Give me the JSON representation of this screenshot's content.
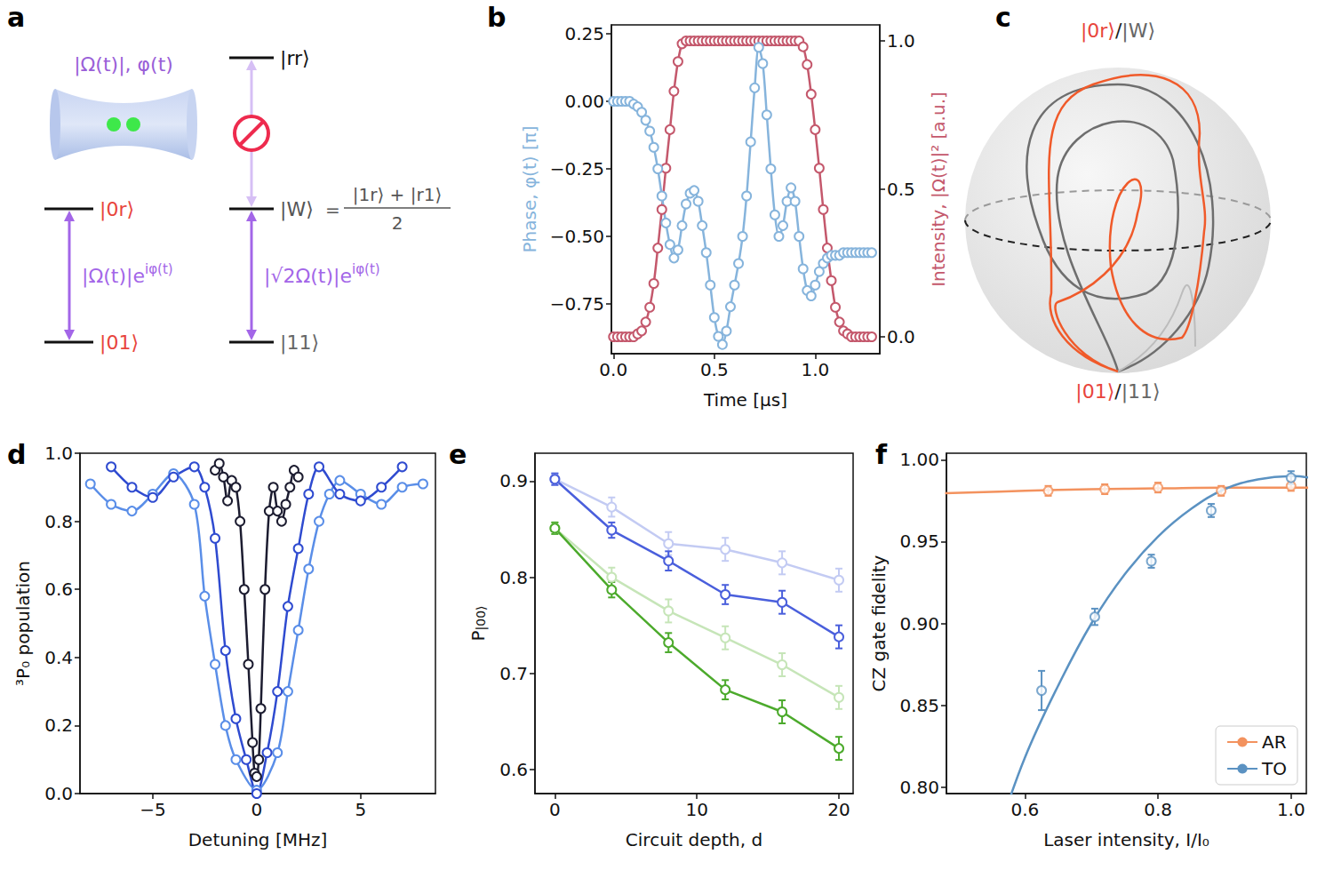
{
  "diagram_a": {
    "panel": "a",
    "beam_label": "|Ω(t)|, φ(t)",
    "left": {
      "upper": "|0r⟩",
      "lower": "|01⟩",
      "coupling": {
        "base": "|Ω(t)|e",
        "sup": "iφ(t)"
      }
    },
    "right": {
      "top": "|rr⟩",
      "middle": "|W⟩",
      "middle_definition": {
        "lhs": "=",
        "numerator": "|1r⟩ + |r1⟩",
        "denominator": "2"
      },
      "lower": "|11⟩",
      "coupling": {
        "base": "|√2Ω(t)|e",
        "sup": "iφ(t)"
      }
    }
  },
  "diagram_c": {
    "panel": "c",
    "top_label": [
      {
        "text": "|0r⟩",
        "color": "#e8453c"
      },
      {
        "text": "/",
        "color": "#222222"
      },
      {
        "text": "|W⟩",
        "color": "#666666"
      }
    ],
    "bottom_label": [
      {
        "text": "|01⟩",
        "color": "#e8453c"
      },
      {
        "text": "/",
        "color": "#222222"
      },
      {
        "text": "|11⟩",
        "color": "#666666"
      }
    ]
  },
  "chart_data": [
    {
      "panel": "b",
      "type": "line",
      "marker": "circle",
      "grid": false,
      "x_label": "Time [μs]",
      "y_label": "Phase, φ(t) [π]",
      "y2_label": "Intensity, |Ω(t)|² [a.u.]",
      "xlim": [
        -0.01,
        1.32
      ],
      "xticks": [
        {
          "value": 0,
          "label": "0.0"
        },
        {
          "value": 0.5,
          "label": "0.5"
        },
        {
          "value": 1,
          "label": "1.0"
        }
      ],
      "ylim": [
        -0.934,
        0.283
      ],
      "yticks": [
        {
          "value": -0.75,
          "label": "−0.75"
        },
        {
          "value": -0.5,
          "label": "−0.50"
        },
        {
          "value": -0.25,
          "label": "−0.25"
        },
        {
          "value": 0,
          "label": "0.00"
        },
        {
          "value": 0.25,
          "label": "0.25"
        }
      ],
      "y2lim": [
        -0.057,
        1.054
      ],
      "y2ticks": [
        {
          "value": 0,
          "label": "0.0"
        },
        {
          "value": 0.5,
          "label": "0.5"
        },
        {
          "value": 1,
          "label": "1.0"
        }
      ],
      "x": [
        0,
        0.02,
        0.04,
        0.06,
        0.08,
        0.1,
        0.12,
        0.14,
        0.16,
        0.18,
        0.2,
        0.22,
        0.24,
        0.26,
        0.28,
        0.3,
        0.32,
        0.34,
        0.36,
        0.38,
        0.4,
        0.42,
        0.44,
        0.46,
        0.48,
        0.5,
        0.52,
        0.54,
        0.56,
        0.58,
        0.6,
        0.62,
        0.64,
        0.66,
        0.68,
        0.7,
        0.72,
        0.74,
        0.76,
        0.78,
        0.8,
        0.82,
        0.84,
        0.86,
        0.88,
        0.9,
        0.92,
        0.94,
        0.96,
        0.98,
        1.0,
        1.02,
        1.04,
        1.06,
        1.08,
        1.1,
        1.12,
        1.14,
        1.16,
        1.18,
        1.2,
        1.22,
        1.24,
        1.26,
        1.28
      ],
      "series": [
        {
          "color": "#c4586c",
          "axis": "y2",
          "values": [
            0,
            0,
            0,
            0,
            0,
            0,
            0.01,
            0.02,
            0.05,
            0.1,
            0.18,
            0.3,
            0.43,
            0.57,
            0.7,
            0.83,
            0.93,
            0.99,
            1,
            1,
            1,
            1,
            1,
            1,
            1,
            1,
            1,
            1,
            1,
            1,
            1,
            1,
            1,
            1,
            1,
            1,
            1,
            1,
            1,
            1,
            1,
            1,
            1,
            1,
            1,
            1,
            1,
            0.98,
            0.92,
            0.82,
            0.7,
            0.57,
            0.43,
            0.3,
            0.19,
            0.1,
            0.05,
            0.02,
            0.01,
            0,
            0,
            0,
            0,
            0,
            0
          ]
        },
        {
          "color": "#86b4dc",
          "axis": "y",
          "values": [
            0,
            0,
            0,
            0,
            0,
            -0.01,
            -0.02,
            -0.04,
            -0.07,
            -0.11,
            -0.17,
            -0.25,
            -0.35,
            -0.45,
            -0.53,
            -0.58,
            -0.55,
            -0.46,
            -0.38,
            -0.34,
            -0.33,
            -0.37,
            -0.46,
            -0.56,
            -0.68,
            -0.8,
            -0.87,
            -0.9,
            -0.85,
            -0.76,
            -0.68,
            -0.6,
            -0.5,
            -0.35,
            -0.15,
            0.05,
            0.2,
            0.14,
            -0.05,
            -0.25,
            -0.42,
            -0.5,
            -0.46,
            -0.37,
            -0.32,
            -0.37,
            -0.5,
            -0.62,
            -0.7,
            -0.72,
            -0.68,
            -0.63,
            -0.6,
            -0.58,
            -0.57,
            -0.57,
            -0.57,
            -0.56,
            -0.56,
            -0.56,
            -0.56,
            -0.56,
            -0.56,
            -0.56,
            -0.56
          ]
        }
      ]
    },
    {
      "panel": "d",
      "type": "line",
      "marker": "circle",
      "grid": false,
      "x_label": "Detuning [MHz]",
      "y_label": "³P₀ population",
      "xlim": [
        -8.5,
        8.6
      ],
      "xticks": [
        {
          "value": -5,
          "label": "−5"
        },
        0,
        5
      ],
      "ylim": [
        0,
        1
      ],
      "yticks": [
        {
          "value": 0,
          "label": "0.0"
        },
        0.2,
        0.4,
        0.6,
        0.8,
        {
          "value": 1,
          "label": "1.0"
        }
      ],
      "series": [
        {
          "color": "#5a8ee8",
          "x": [
            -8,
            -7,
            -6,
            -5,
            -4,
            -3,
            -2.5,
            -2,
            -1.5,
            -1,
            0,
            1,
            1.5,
            2,
            2.5,
            3,
            3.5,
            4,
            5,
            6,
            7,
            8
          ],
          "values": [
            0.91,
            0.85,
            0.83,
            0.88,
            0.94,
            0.85,
            0.58,
            0.38,
            0.2,
            0.1,
            0.01,
            0.12,
            0.3,
            0.48,
            0.66,
            0.8,
            0.88,
            0.92,
            0.88,
            0.85,
            0.9,
            0.91
          ]
        },
        {
          "color": "#2f4bd0",
          "x": [
            -7,
            -6,
            -5,
            -4,
            -3,
            -2.5,
            -2,
            -1.5,
            -1,
            -0.5,
            0,
            0.5,
            1,
            1.5,
            2,
            2.5,
            3,
            4,
            5,
            6,
            7
          ],
          "values": [
            0.96,
            0.9,
            0.87,
            0.93,
            0.96,
            0.9,
            0.75,
            0.42,
            0.22,
            0.1,
            0.0,
            0.12,
            0.3,
            0.55,
            0.72,
            0.88,
            0.96,
            0.88,
            0.86,
            0.9,
            0.96
          ]
        },
        {
          "color": "#1c1c30",
          "x": [
            -2,
            -1.8,
            -1.6,
            -1.4,
            -1.2,
            -1,
            -0.8,
            -0.6,
            -0.4,
            -0.2,
            -0.1,
            0,
            0.1,
            0.2,
            0.4,
            0.6,
            0.8,
            1,
            1.2,
            1.4,
            1.6,
            1.8,
            2
          ],
          "values": [
            0.95,
            0.97,
            0.93,
            0.86,
            0.92,
            0.9,
            0.8,
            0.6,
            0.38,
            0.15,
            0.06,
            0.05,
            0.1,
            0.25,
            0.6,
            0.83,
            0.9,
            0.83,
            0.8,
            0.85,
            0.9,
            0.95,
            0.93
          ]
        }
      ]
    },
    {
      "panel": "e",
      "type": "line",
      "marker": "circle",
      "grid": false,
      "x_label": "Circuit depth, d",
      "y_label": {
        "base": "P",
        "sub": "|00⟩"
      },
      "xlim": [
        -1.4,
        21
      ],
      "xticks": [
        0,
        10,
        20
      ],
      "ylim": [
        0.575,
        0.929
      ],
      "yticks": [
        0.6,
        0.7,
        0.8,
        0.9
      ],
      "x": [
        0,
        4,
        8,
        12,
        16,
        20
      ],
      "series": [
        {
          "color": "#c3cbf3",
          "values": [
            0.902,
            0.873,
            0.835,
            0.829,
            0.815,
            0.797
          ],
          "errors": [
            0.006,
            0.01,
            0.012,
            0.012,
            0.012,
            0.012
          ]
        },
        {
          "color": "#c6e5b8",
          "values": [
            0.851,
            0.8,
            0.765,
            0.737,
            0.709,
            0.675
          ],
          "errors": [
            0.006,
            0.01,
            0.012,
            0.012,
            0.012,
            0.012
          ]
        },
        {
          "color": "#4a5fdc",
          "values": [
            0.902,
            0.849,
            0.817,
            0.782,
            0.774,
            0.738
          ],
          "errors": [
            0.006,
            0.008,
            0.01,
            0.01,
            0.012,
            0.012
          ]
        },
        {
          "color": "#4caa2c",
          "values": [
            0.851,
            0.787,
            0.732,
            0.683,
            0.66,
            0.622
          ],
          "errors": [
            0.006,
            0.008,
            0.01,
            0.01,
            0.012,
            0.012
          ]
        }
      ]
    },
    {
      "panel": "f",
      "type": "scatter",
      "marker": "circle",
      "grid": false,
      "legend": "lower right",
      "x_label": "Laser intensity, I/I₀",
      "y_label": "CZ gate fidelity",
      "xlim": [
        0.482,
        1.023
      ],
      "xticks": [
        0.6,
        0.8,
        {
          "value": 1,
          "label": "1.0"
        }
      ],
      "ylim": [
        0.796,
        1.004
      ],
      "yticks": [
        {
          "value": 0.8,
          "label": "0.80"
        },
        0.85,
        {
          "value": 0.9,
          "label": "0.90"
        },
        0.95,
        {
          "value": 1,
          "label": "1.00"
        }
      ],
      "series": [
        {
          "name": "AR",
          "color": "#f3925e",
          "x": [
            0.635,
            0.72,
            0.8,
            0.895,
            1.0
          ],
          "values": [
            0.981,
            0.982,
            0.983,
            0.981,
            0.984
          ],
          "errors": [
            0.003,
            0.003,
            0.003,
            0.003,
            0.003
          ],
          "fit_x": [
            0.48,
            0.6,
            0.7,
            0.8,
            0.9,
            1.0,
            1.08
          ],
          "fit_values": [
            0.9795,
            0.981,
            0.982,
            0.9825,
            0.983,
            0.983,
            0.9825
          ]
        },
        {
          "name": "TO",
          "color": "#5b92c2",
          "x": [
            0.625,
            0.705,
            0.79,
            0.88,
            1.0
          ],
          "values": [
            0.859,
            0.904,
            0.938,
            0.969,
            0.989
          ],
          "errors": [
            0.012,
            0.005,
            0.004,
            0.004,
            0.004
          ],
          "fit_x": [
            0.56,
            0.6,
            0.65,
            0.7,
            0.75,
            0.8,
            0.85,
            0.9,
            0.95,
            1.0,
            1.05,
            1.08
          ],
          "fit_values": [
            0.772,
            0.818,
            0.862,
            0.9,
            0.93,
            0.953,
            0.97,
            0.982,
            0.988,
            0.99,
            0.987,
            0.982
          ]
        }
      ]
    }
  ]
}
